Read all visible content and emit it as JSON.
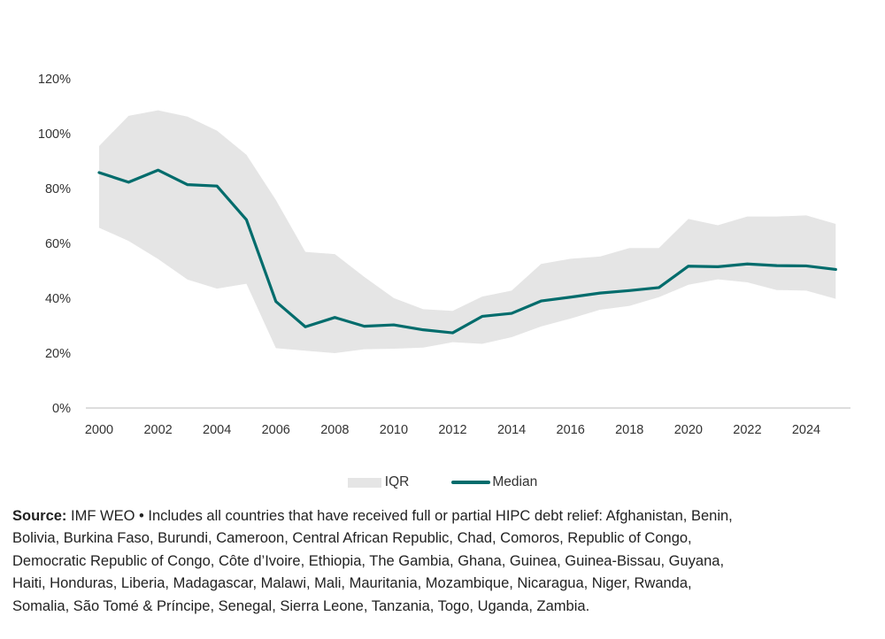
{
  "chart_data": {
    "type": "area",
    "title": "",
    "xlabel": "",
    "ylabel": "",
    "x": [
      2000,
      2001,
      2002,
      2003,
      2004,
      2005,
      2006,
      2007,
      2008,
      2009,
      2010,
      2011,
      2012,
      2013,
      2014,
      2015,
      2016,
      2017,
      2018,
      2019,
      2020,
      2021,
      2022,
      2023,
      2024,
      2025
    ],
    "series": [
      {
        "name": "IQR",
        "kind": "band",
        "upper": [
          95.5,
          106.5,
          108.5,
          106.2,
          101.1,
          92.3,
          75.8,
          56.9,
          56.1,
          47.8,
          40.1,
          36.0,
          35.4,
          40.6,
          42.8,
          52.5,
          54.4,
          55.2,
          58.3,
          58.3,
          68.9,
          66.6,
          69.8,
          69.8,
          70.2,
          67.1
        ],
        "lower": [
          65.7,
          60.9,
          54.3,
          46.8,
          43.5,
          45.3,
          21.8,
          20.9,
          20.0,
          21.4,
          21.6,
          22.0,
          24.0,
          23.4,
          25.8,
          29.7,
          32.6,
          35.8,
          37.2,
          40.4,
          44.9,
          46.9,
          45.8,
          43.0,
          42.8,
          39.8
        ],
        "color": "#e5e5e5"
      },
      {
        "name": "Median",
        "kind": "line",
        "values": [
          85.8,
          82.3,
          86.7,
          81.4,
          80.9,
          68.6,
          38.8,
          29.6,
          33.0,
          29.8,
          30.3,
          28.5,
          27.4,
          33.4,
          34.5,
          39.0,
          40.4,
          41.9,
          42.8,
          43.9,
          51.7,
          51.5,
          52.5,
          51.9,
          51.8,
          50.5
        ],
        "color": "#006c6c"
      }
    ],
    "xticks": [
      "2000",
      "2002",
      "2004",
      "2006",
      "2008",
      "2010",
      "2012",
      "2014",
      "2016",
      "2018",
      "2020",
      "2022",
      "2024"
    ],
    "yticks": [
      "0%",
      "20%",
      "40%",
      "60%",
      "80%",
      "100%",
      "120%"
    ],
    "ylim": [
      0,
      120
    ],
    "xlim": [
      2000,
      2025
    ],
    "grid": false,
    "legend_position": "bottom-center"
  },
  "legend": {
    "iqr": "IQR",
    "median": "Median"
  },
  "caption": {
    "source_label": "Source:",
    "lines": [
      " IMF WEO • Includes all countries that have received full or partial HIPC debt relief: Afghanistan, Benin,",
      "Bolivia, Burkina Faso, Burundi, Cameroon, Central African Republic, Chad, Comoros, Republic of Congo,",
      "Democratic Republic of Congo, Côte d’Ivoire, Ethiopia, The Gambia, Ghana, Guinea, Guinea-Bissau, Guyana,",
      "Haiti, Honduras, Liberia, Madagascar, Malawi, Mali, Mauritania, Mozambique, Nicaragua, Niger, Rwanda,",
      "Somalia, São Tomé & Príncipe, Senegal, Sierra Leone, Tanzania, Togo, Uganda, Zambia."
    ]
  }
}
